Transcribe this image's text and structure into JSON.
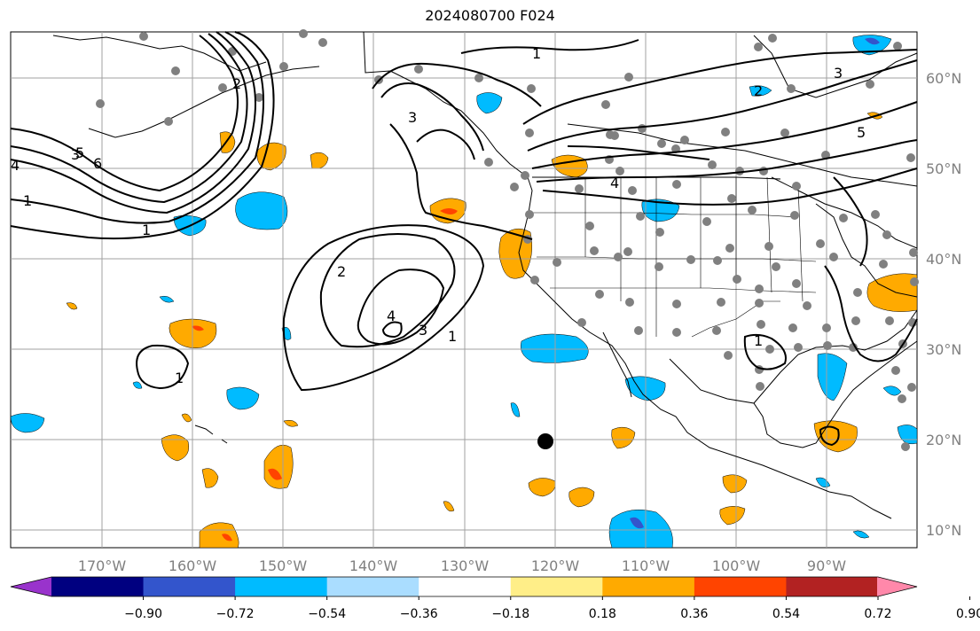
{
  "title": "2024080700 F024",
  "lon_labels": [
    "170°W",
    "160°W",
    "150°W",
    "140°W",
    "130°W",
    "120°W",
    "110°W",
    "100°W",
    "90°W"
  ],
  "lat_labels": [
    "60°N",
    "50°N",
    "40°N",
    "30°N",
    "20°N",
    "10°N"
  ],
  "colorbar": {
    "colors": [
      "#9933cc",
      "#000080",
      "#3355cc",
      "#00bbff",
      "#aaddff",
      "#ffffff",
      "#ffee88",
      "#ffaa00",
      "#ff4400",
      "#b22222",
      "#ff88aa"
    ],
    "labels": [
      "−0.90",
      "−0.72",
      "−0.54",
      "−0.36",
      "−0.18",
      "0.18",
      "0.36",
      "0.54",
      "0.72",
      "0.90"
    ]
  },
  "contour_labels": [
    "2",
    "3",
    "1",
    "4",
    "5",
    "6",
    "3",
    "2",
    "1",
    "4",
    "1",
    "3",
    "4",
    "2",
    "5",
    "1",
    "3",
    "1",
    "1"
  ],
  "colors": {
    "orange": "#ffaa00",
    "red": "#ff4400",
    "light_blue": "#00bbff",
    "blue": "#3355cc",
    "grid": "#a0a0a0",
    "station": "#808080"
  }
}
